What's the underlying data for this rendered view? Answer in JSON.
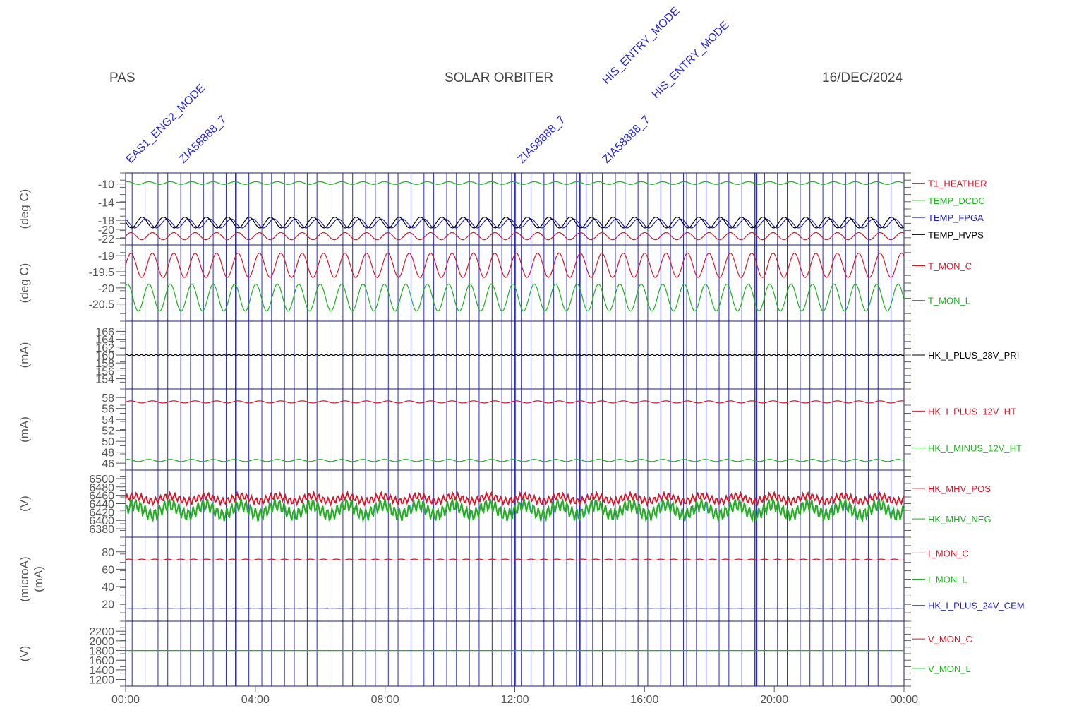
{
  "instrument": "PAS",
  "mission": "SOLAR ORBITER",
  "date": "16/DEC/2024",
  "colors": {
    "red": "#d11a2a",
    "green": "#1db31d",
    "blue": "#1f1fae",
    "black": "#000000",
    "frame": "#1f1f6e",
    "event": "#2a2acd"
  },
  "chart_data": {
    "type": "line",
    "x_axis": {
      "ticks": [
        "00:00",
        "04:00",
        "08:00",
        "12:00",
        "16:00",
        "20:00",
        "00:00"
      ],
      "range_hours": [
        0,
        24
      ]
    },
    "event_lines": {
      "thick_hours": [
        3.4,
        12.0,
        14.0,
        19.45
      ],
      "thin_hours": [
        0.2,
        0.6,
        1.0,
        1.3,
        1.7,
        2.0,
        2.4,
        2.7,
        3.1,
        3.8,
        4.2,
        4.5,
        4.9,
        5.2,
        5.6,
        5.9,
        6.3,
        6.7,
        7.0,
        7.4,
        7.7,
        8.1,
        8.4,
        8.8,
        9.2,
        9.5,
        9.9,
        10.2,
        10.6,
        10.9,
        11.3,
        11.6,
        11.9,
        12.2,
        12.5,
        12.9,
        13.2,
        13.6,
        13.9,
        14.2,
        14.4,
        14.7,
        15.1,
        15.4,
        15.8,
        16.1,
        16.5,
        16.8,
        17.2,
        17.3,
        17.6,
        17.9,
        18.3,
        18.6,
        19.0,
        19.4,
        19.7,
        20.1,
        20.4,
        20.8,
        21.1,
        21.5,
        21.8,
        22.2,
        22.5,
        22.9,
        23.2,
        23.6
      ]
    },
    "event_annotations": [
      "EAS1_ENG2_MODE",
      "ZIA58888_7",
      "HIS_ENTRY_MODE",
      "HIS_ENTRY_MODE",
      "ZIA58888_7",
      "ZIA58888_7"
    ],
    "panels": [
      {
        "unit": "(deg C)",
        "ticks": [
          -10,
          -14,
          -18,
          -20,
          -22
        ],
        "ylim": [
          -8.5,
          -22.5
        ],
        "series": [
          {
            "name": "T1_HEATHER",
            "color": "red",
            "mean": -21.5,
            "amp": 0.8,
            "period_h": 0.66
          },
          {
            "name": "TEMP_DCDC",
            "color": "green",
            "mean": -9.8,
            "amp": 0.3,
            "period_h": 0.66
          },
          {
            "name": "TEMP_FPGA",
            "color": "blue",
            "mean": -18.7,
            "amp": 1.0,
            "period_h": 0.66
          },
          {
            "name": "TEMP_HVPS",
            "color": "black",
            "mean": -18.5,
            "amp": 1.2,
            "period_h": 0.66
          }
        ]
      },
      {
        "unit": "(deg C)",
        "ticks": [
          -19.0,
          -19.5,
          -20.0,
          -20.5
        ],
        "ylim": [
          -18.8,
          -20.9
        ],
        "series": [
          {
            "name": "T_MON_C",
            "color": "red",
            "mean": -19.3,
            "amp": 0.38,
            "period_h": 0.66
          },
          {
            "name": "T_MON_L",
            "color": "green",
            "mean": -20.3,
            "amp": 0.42,
            "period_h": 0.66
          }
        ]
      },
      {
        "unit": "(mA)",
        "ticks": [
          166,
          164,
          162,
          160,
          158,
          156,
          154
        ],
        "ylim": [
          167.5,
          152.5
        ],
        "series": [
          {
            "name": "HK_I_PLUS_28V_PRI",
            "color": "black",
            "mean": 160.0,
            "amp": 0.15,
            "period_h": 0.15
          }
        ]
      },
      {
        "unit": "(mA)",
        "ticks": [
          58,
          56,
          54,
          52,
          50,
          48,
          46
        ],
        "ylim": [
          58.8,
          45.5
        ],
        "series": [
          {
            "name": "HK_I_PLUS_12V_HT",
            "color": "red",
            "mean": 57.2,
            "amp": 0.2,
            "period_h": 0.66
          },
          {
            "name": "HK_I_MINUS_12V_HT",
            "color": "green",
            "mean": 46.5,
            "amp": 0.2,
            "period_h": 0.66
          }
        ]
      },
      {
        "unit": "(V)",
        "ticks": [
          6500,
          6480,
          6460,
          6440,
          6420,
          6400,
          6380
        ],
        "ylim": [
          6510,
          6370
        ],
        "series": [
          {
            "name": "HK_MHV_POS",
            "color": "red",
            "mean": 6452,
            "amp": 8,
            "period_h": 0.05
          },
          {
            "name": "HK_MHV_NEG",
            "color": "green",
            "mean": 6425,
            "amp": 15,
            "period_h": 0.05
          }
        ]
      },
      {
        "unit": "(microA)",
        "unit2": "(mA)",
        "ticks": [
          80,
          60,
          40,
          20
        ],
        "ylim": [
          92,
          5
        ],
        "series": [
          {
            "name": "I_MON_C",
            "color": "red",
            "mean": 71,
            "amp": 0.6,
            "period_h": 0.4
          },
          {
            "name": "I_MON_L",
            "color": "green",
            "mean": null,
            "amp": 0,
            "period_h": 1
          },
          {
            "name": "HK_I_PLUS_24V_CEM",
            "color": "blue",
            "mean": 15,
            "amp": 0.1,
            "period_h": 0.4
          }
        ]
      },
      {
        "unit": "(V)",
        "ticks": [
          2200,
          2000,
          1800,
          1600,
          1400,
          1200
        ],
        "ylim": [
          2320,
          1150
        ],
        "series": [
          {
            "name": "V_MON_C",
            "color": "red",
            "mean": null,
            "amp": 0,
            "period_h": 1
          },
          {
            "name": "V_MON_L",
            "color": "green",
            "mean": 1800,
            "amp": 0,
            "period_h": 1
          }
        ]
      }
    ]
  }
}
